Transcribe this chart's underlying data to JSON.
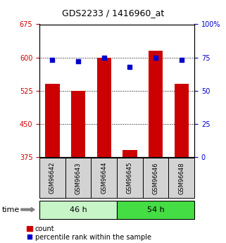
{
  "title": "GDS2233 / 1416960_at",
  "samples": [
    "GSM96642",
    "GSM96643",
    "GSM96644",
    "GSM96645",
    "GSM96646",
    "GSM96648"
  ],
  "count_values": [
    540,
    525,
    600,
    390,
    615,
    540
  ],
  "percentile_values": [
    73,
    72,
    75,
    68,
    75,
    73
  ],
  "ylim_left": [
    375,
    675
  ],
  "ylim_right": [
    0,
    100
  ],
  "yticks_left": [
    375,
    450,
    525,
    600,
    675
  ],
  "yticks_right": [
    0,
    25,
    50,
    75,
    100
  ],
  "ytick_labels_right": [
    "0",
    "25",
    "50",
    "75",
    "100%"
  ],
  "groups": [
    {
      "label": "46 h",
      "color_light": "#c8f5c8",
      "color_dark": "#c8f5c8"
    },
    {
      "label": "54 h",
      "color_light": "#44dd44",
      "color_dark": "#44dd44"
    }
  ],
  "bar_color": "#cc0000",
  "dot_color": "#0000cc",
  "bar_width": 0.55,
  "background_color": "#ffffff",
  "left_tick_color": "#cc0000",
  "right_tick_color": "#0000cc",
  "time_label": "time",
  "legend_count_label": "count",
  "legend_percentile_label": "percentile rank within the sample",
  "title_fontsize": 9,
  "tick_fontsize": 7,
  "sample_fontsize": 6,
  "group_fontsize": 8,
  "legend_fontsize": 7
}
